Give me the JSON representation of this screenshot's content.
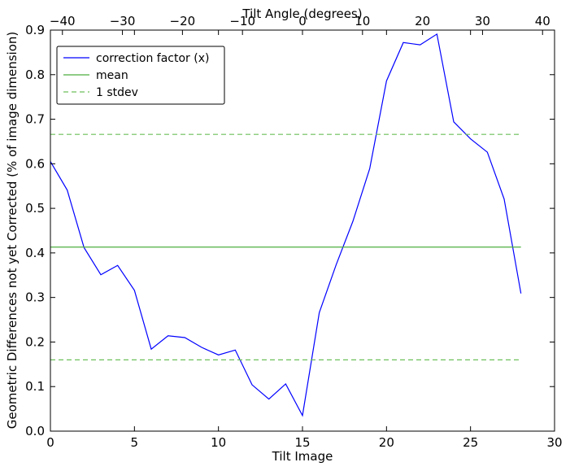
{
  "chart_data": {
    "type": "line",
    "xlabel": "Tilt Image",
    "ylabel": "Geometric Differences not yet Corrected (% of image dimension)",
    "top_xlabel": "Tilt Angle (degrees)",
    "xlim": [
      0,
      30
    ],
    "ylim": [
      0,
      0.9
    ],
    "top_xlim": [
      -42,
      42
    ],
    "x_ticks": [
      0,
      5,
      10,
      15,
      20,
      25,
      30
    ],
    "x_tick_labels": [
      "0",
      "5",
      "10",
      "15",
      "20",
      "25",
      "30"
    ],
    "y_ticks": [
      0.0,
      0.1,
      0.2,
      0.3,
      0.4,
      0.5,
      0.6,
      0.7,
      0.8,
      0.9
    ],
    "y_tick_labels": [
      "0.0",
      "0.1",
      "0.2",
      "0.3",
      "0.4",
      "0.5",
      "0.6",
      "0.7",
      "0.8",
      "0.9"
    ],
    "top_ticks": [
      -40,
      -30,
      -20,
      -10,
      0,
      10,
      20,
      30,
      40
    ],
    "top_tick_labels": [
      "−40",
      "−30",
      "−20",
      "−10",
      "0",
      "10",
      "20",
      "30",
      "40"
    ],
    "grid": false,
    "legend_position": "top-left",
    "series": [
      {
        "name": "correction factor (x)",
        "style": "solid",
        "color": "#0000ff",
        "x": [
          0,
          1,
          2,
          3,
          4,
          5,
          6,
          7,
          8,
          9,
          10,
          11,
          12,
          13,
          14,
          15,
          16,
          17,
          18,
          19,
          20,
          21,
          22,
          23,
          24,
          25,
          26,
          27,
          28
        ],
        "y": [
          0.605,
          0.541,
          0.412,
          0.351,
          0.372,
          0.316,
          0.184,
          0.214,
          0.21,
          0.188,
          0.171,
          0.182,
          0.104,
          0.072,
          0.106,
          0.035,
          0.266,
          0.373,
          0.471,
          0.589,
          0.786,
          0.872,
          0.867,
          0.891,
          0.694,
          0.656,
          0.626,
          0.521,
          0.309
        ]
      },
      {
        "name": "mean",
        "style": "solid",
        "color": "#4caf3f",
        "x": [
          0,
          28
        ],
        "y": [
          0.413,
          0.413
        ]
      },
      {
        "name": "1 stdev",
        "style": "dashed",
        "color": "#6dbf5a",
        "x": [
          0,
          28
        ],
        "y": [
          0.666,
          0.666
        ]
      },
      {
        "name": "",
        "style": "dashed",
        "color": "#6dbf5a",
        "x": [
          0,
          28
        ],
        "y": [
          0.16,
          0.16
        ]
      }
    ]
  }
}
